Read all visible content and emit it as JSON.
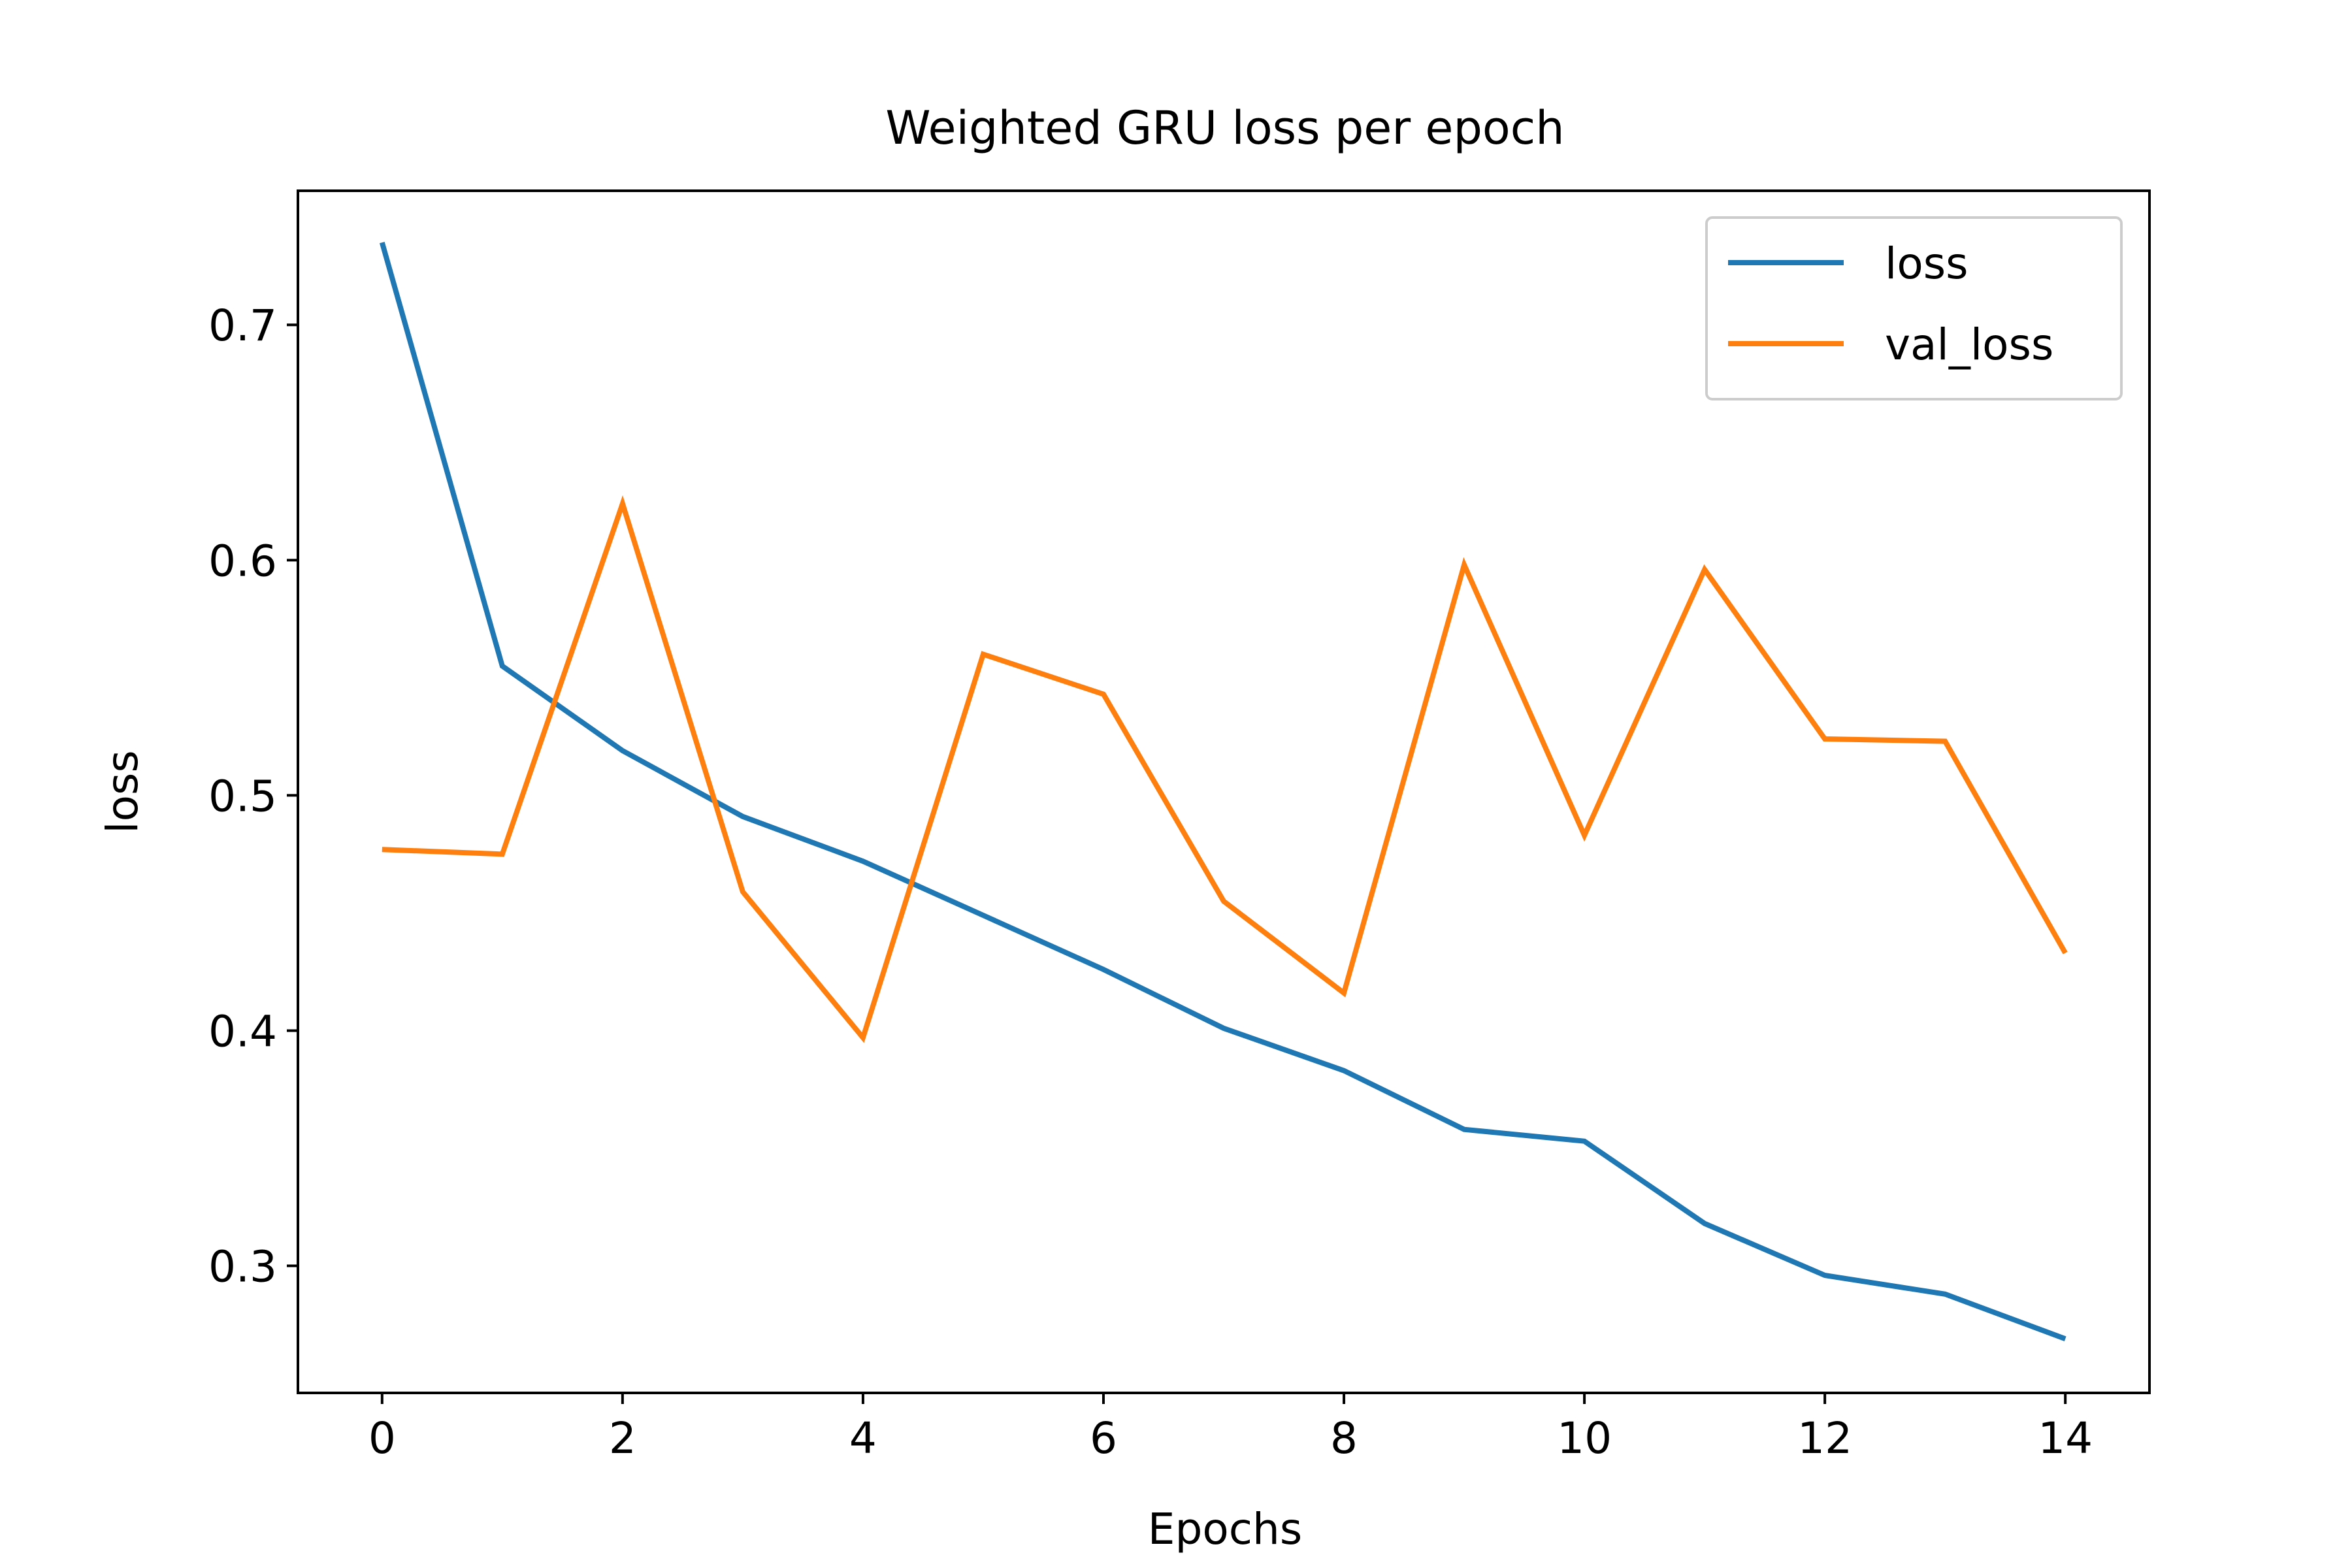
{
  "chart_data": {
    "type": "line",
    "title": "Weighted GRU loss per epoch",
    "xlabel": "Epochs",
    "ylabel": "loss",
    "xlim": [
      -0.7,
      14.7
    ],
    "ylim": [
      0.246,
      0.757
    ],
    "xticks": [
      0,
      2,
      4,
      6,
      8,
      10,
      12,
      14
    ],
    "xtick_labels": [
      "0",
      "2",
      "4",
      "6",
      "8",
      "10",
      "12",
      "14"
    ],
    "yticks": [
      0.3,
      0.4,
      0.5,
      0.6,
      0.7
    ],
    "ytick_labels": [
      "0.3",
      "0.4",
      "0.5",
      "0.6",
      "0.7"
    ],
    "grid": false,
    "legend_position": "top-right",
    "x": [
      0,
      1,
      2,
      3,
      4,
      5,
      6,
      7,
      8,
      9,
      10,
      11,
      12,
      13,
      14
    ],
    "series": [
      {
        "name": "loss",
        "color": "#1f77b4",
        "values": [
          0.735,
          0.555,
          0.519,
          0.491,
          0.472,
          0.449,
          0.426,
          0.401,
          0.383,
          0.358,
          0.353,
          0.318,
          0.296,
          0.288,
          0.269
        ]
      },
      {
        "name": "val_loss",
        "color": "#ff7f0e",
        "values": [
          0.477,
          0.475,
          0.624,
          0.459,
          0.397,
          0.56,
          0.543,
          0.455,
          0.416,
          0.598,
          0.483,
          0.596,
          0.524,
          0.523,
          0.433
        ]
      }
    ]
  }
}
